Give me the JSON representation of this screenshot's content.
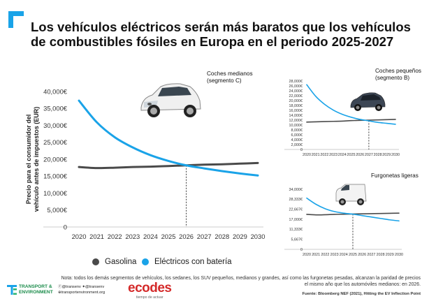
{
  "title_lines": [
    "Los vehículos eléctricos serán más baratos que los vehículos",
    "de combustibles fósiles en Europa en el periodo 2025-2027"
  ],
  "colors": {
    "gasoline": "#4a4a4a",
    "electric": "#1aa3e8",
    "accent": "#1aa3e8"
  },
  "chart_data": [
    {
      "type": "line",
      "title": "Coches medianos (segmento C)",
      "ylabel": "Precio para el consumidor del vehículo antes de impuestos (EUR)",
      "xlabel": "",
      "x": [
        2020,
        2021,
        2022,
        2023,
        2024,
        2025,
        2026,
        2027,
        2028,
        2029,
        2030
      ],
      "ylim": [
        0,
        40000
      ],
      "yticks": [
        0,
        5000,
        10000,
        15000,
        20000,
        25000,
        30000,
        35000,
        40000
      ],
      "ytick_labels": [
        "0",
        "5,000€",
        "10,000€",
        "15,000€",
        "20,000€",
        "25,000€",
        "30,000€",
        "35,000€",
        "40,000€"
      ],
      "series": [
        {
          "name": "Gasolina",
          "values": [
            17700,
            17400,
            17500,
            17700,
            17800,
            18000,
            18200,
            18400,
            18500,
            18700,
            18900
          ]
        },
        {
          "name": "Eléctricos con batería",
          "values": [
            37300,
            30900,
            26500,
            23500,
            21200,
            19500,
            18200,
            17300,
            16500,
            15800,
            15200
          ]
        }
      ],
      "crossover_x": 2026,
      "legend": [
        "Gasolina",
        "Eléctricos con batería"
      ],
      "legend_position": "bottom"
    },
    {
      "type": "line",
      "title": "Coches pequeños (segmento B)",
      "x": [
        2020,
        2021,
        2022,
        2023,
        2024,
        2025,
        2026,
        2027,
        2028,
        2029,
        2030
      ],
      "ylim": [
        0,
        28000
      ],
      "yticks": [
        0,
        2000,
        4000,
        6000,
        8000,
        10000,
        12000,
        14000,
        16000,
        18000,
        20000,
        22000,
        24000,
        26000,
        28000
      ],
      "ytick_labels": [
        "0",
        "2,000€",
        "4,000€",
        "6,000€",
        "8,000€",
        "10,000€",
        "12,000€",
        "14,000€",
        "16,000€",
        "18,000€",
        "20,000€",
        "22,000€",
        "24,000€",
        "26,000€",
        "28,000€"
      ],
      "series": [
        {
          "name": "Gasolina",
          "values": [
            11200,
            11300,
            11400,
            11500,
            11600,
            11800,
            11900,
            12000,
            12100,
            12200,
            12300
          ]
        },
        {
          "name": "Eléctricos con batería",
          "values": [
            26500,
            21800,
            18500,
            16100,
            14400,
            13200,
            12300,
            11700,
            11100,
            10700,
            10300
          ]
        }
      ],
      "crossover_x": 2027
    },
    {
      "type": "line",
      "title": "Furgonetas ligeras",
      "x": [
        2020,
        2021,
        2022,
        2023,
        2024,
        2025,
        2026,
        2027,
        2028,
        2029,
        2030
      ],
      "ylim": [
        0,
        34000
      ],
      "yticks": [
        0,
        5667,
        11333,
        17000,
        22667,
        28333,
        34000
      ],
      "ytick_labels": [
        "0",
        "5,667€",
        "11,333€",
        "17,000€",
        "22,667€",
        "28,333€",
        "34,000€"
      ],
      "series": [
        {
          "name": "Gasolina",
          "values": [
            19800,
            19500,
            19600,
            19800,
            19900,
            20000,
            20100,
            20200,
            20300,
            20400,
            20500
          ]
        },
        {
          "name": "Eléctricos con batería",
          "values": [
            29000,
            25500,
            23000,
            21400,
            20500,
            19900,
            19100,
            18300,
            17500,
            16700,
            16100
          ]
        }
      ],
      "crossover_x": 2025
    }
  ],
  "legend": {
    "gasoline": "Gasolina",
    "electric": "Eléctricos con batería"
  },
  "note": "Nota: todos los demás segmentos de vehículos, los sedanes, los SUV pequeños, medianos y grandes, así como las furgonetas pesadas, alcanzan la paridad de precios el mismo año que los automóviles medianos: en 2026.",
  "source": "Fuente: Bloomberg NEF (2021), Hitting the EV Inflection Point",
  "footer": {
    "te_line1": "TRANSPORT &",
    "te_line2": "ENVIRONMENT",
    "social_1a": "@transenv",
    "social_1b": "@transenv",
    "social_2": "transportenvironment.org",
    "ecodes": "ecodes",
    "ecodes_tagline": "tiempo de actuar"
  }
}
